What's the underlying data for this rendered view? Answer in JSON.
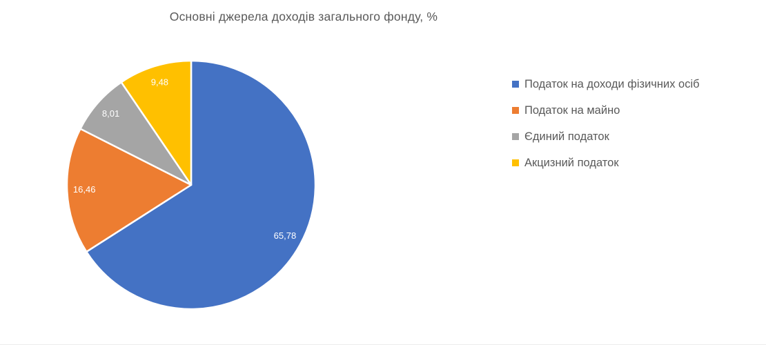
{
  "title": "Основні джерела доходів загального фонду, %",
  "chart_data": {
    "type": "pie",
    "title": "Основні джерела доходів загального фонду, %",
    "categories": [
      "Податок на доходи фізичних осіб",
      "Податок на майно",
      "Єдиний податок",
      "Акцизний податок"
    ],
    "values": [
      65.78,
      16.46,
      8.01,
      9.48
    ],
    "data_labels": [
      "65,78",
      "16,46",
      "8,01",
      "9,48"
    ],
    "colors": [
      "#4472C4",
      "#ED7D31",
      "#A5A5A5",
      "#FFC000"
    ],
    "data_label_color": "#FFFFFF",
    "text_color": "#595959",
    "start_angle_deg": 0,
    "direction": "clockwise",
    "legend_position": "right",
    "grid": false
  }
}
